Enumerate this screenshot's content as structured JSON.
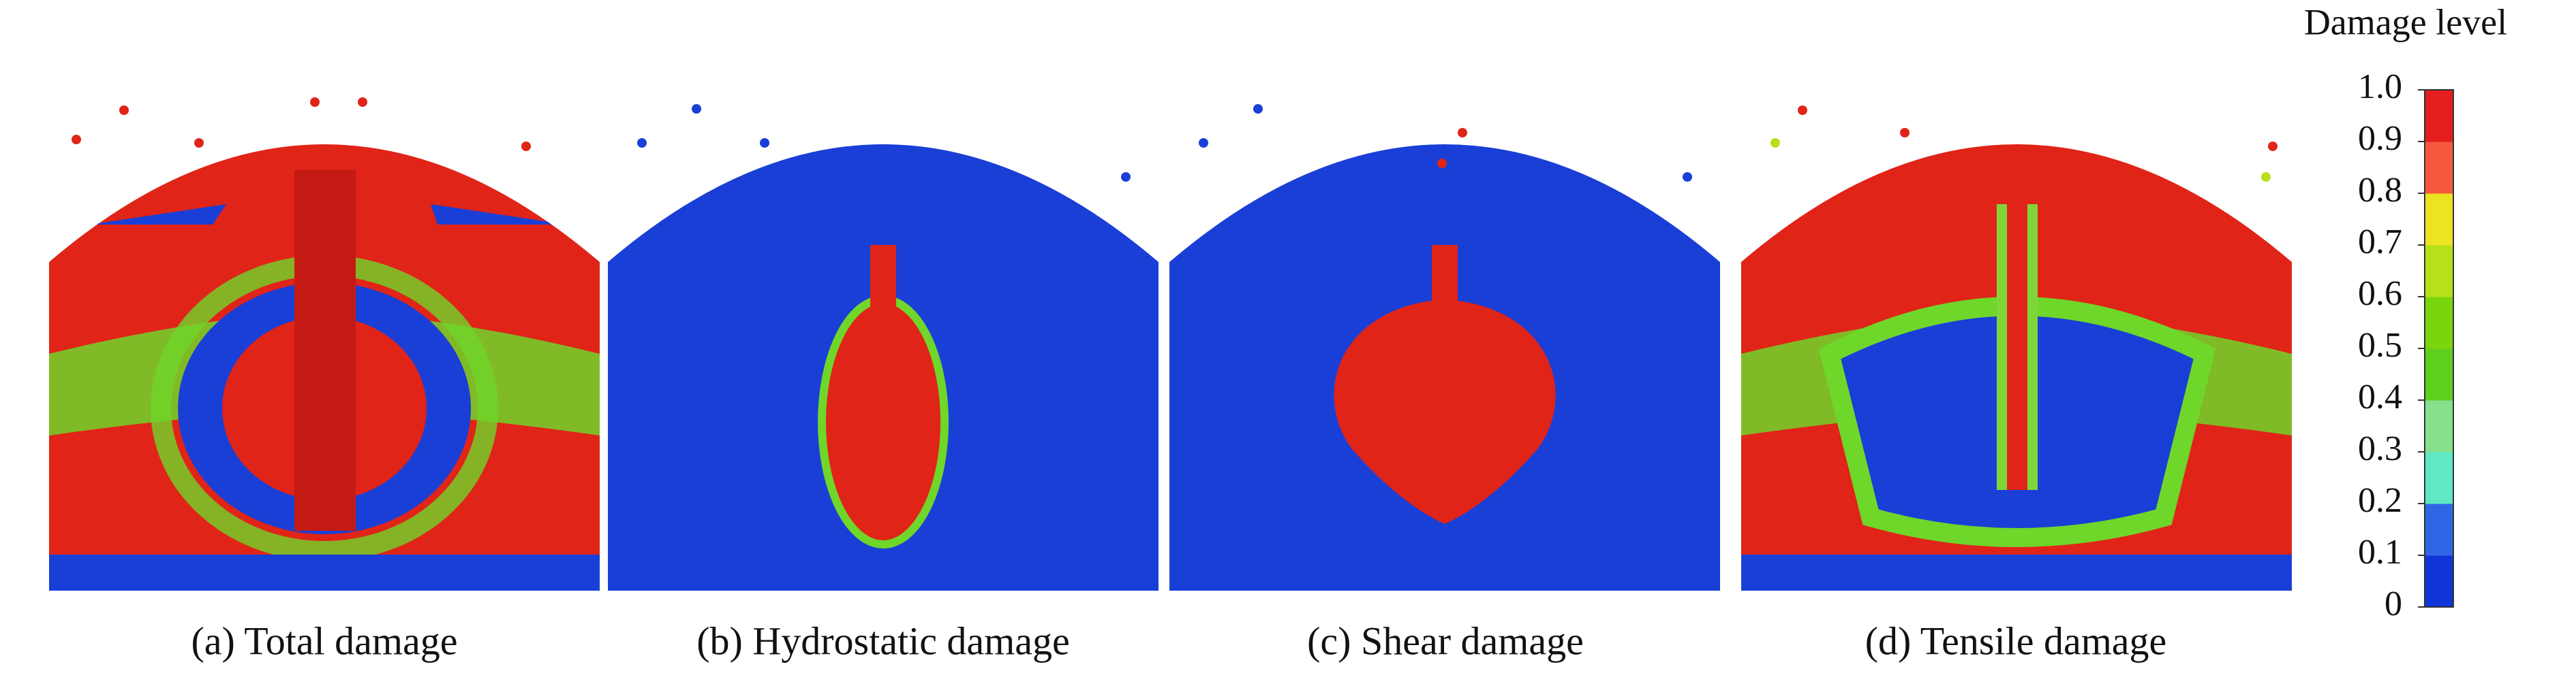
{
  "panels": [
    {
      "caption": "(a) Total damage"
    },
    {
      "caption": "(b) Hydrostatic damage"
    },
    {
      "caption": "(c) Shear damage"
    },
    {
      "caption": "(d) Tensile damage"
    }
  ],
  "colorbar": {
    "title": "Damage level",
    "lim": [
      0,
      1
    ],
    "ticks": [
      0,
      0.1,
      0.2,
      0.3,
      0.4,
      0.5,
      0.6,
      0.7,
      0.8,
      0.9,
      {
        "value": 1,
        "label": "1.0"
      }
    ],
    "colors": [
      "#1035d8",
      "#2f66e6",
      "#5ee8c4",
      "#86e08c",
      "#5fcf1e",
      "#7ad60c",
      "#b6e01a",
      "#ece422",
      "#f5583c",
      "#e41e1e"
    ]
  }
}
